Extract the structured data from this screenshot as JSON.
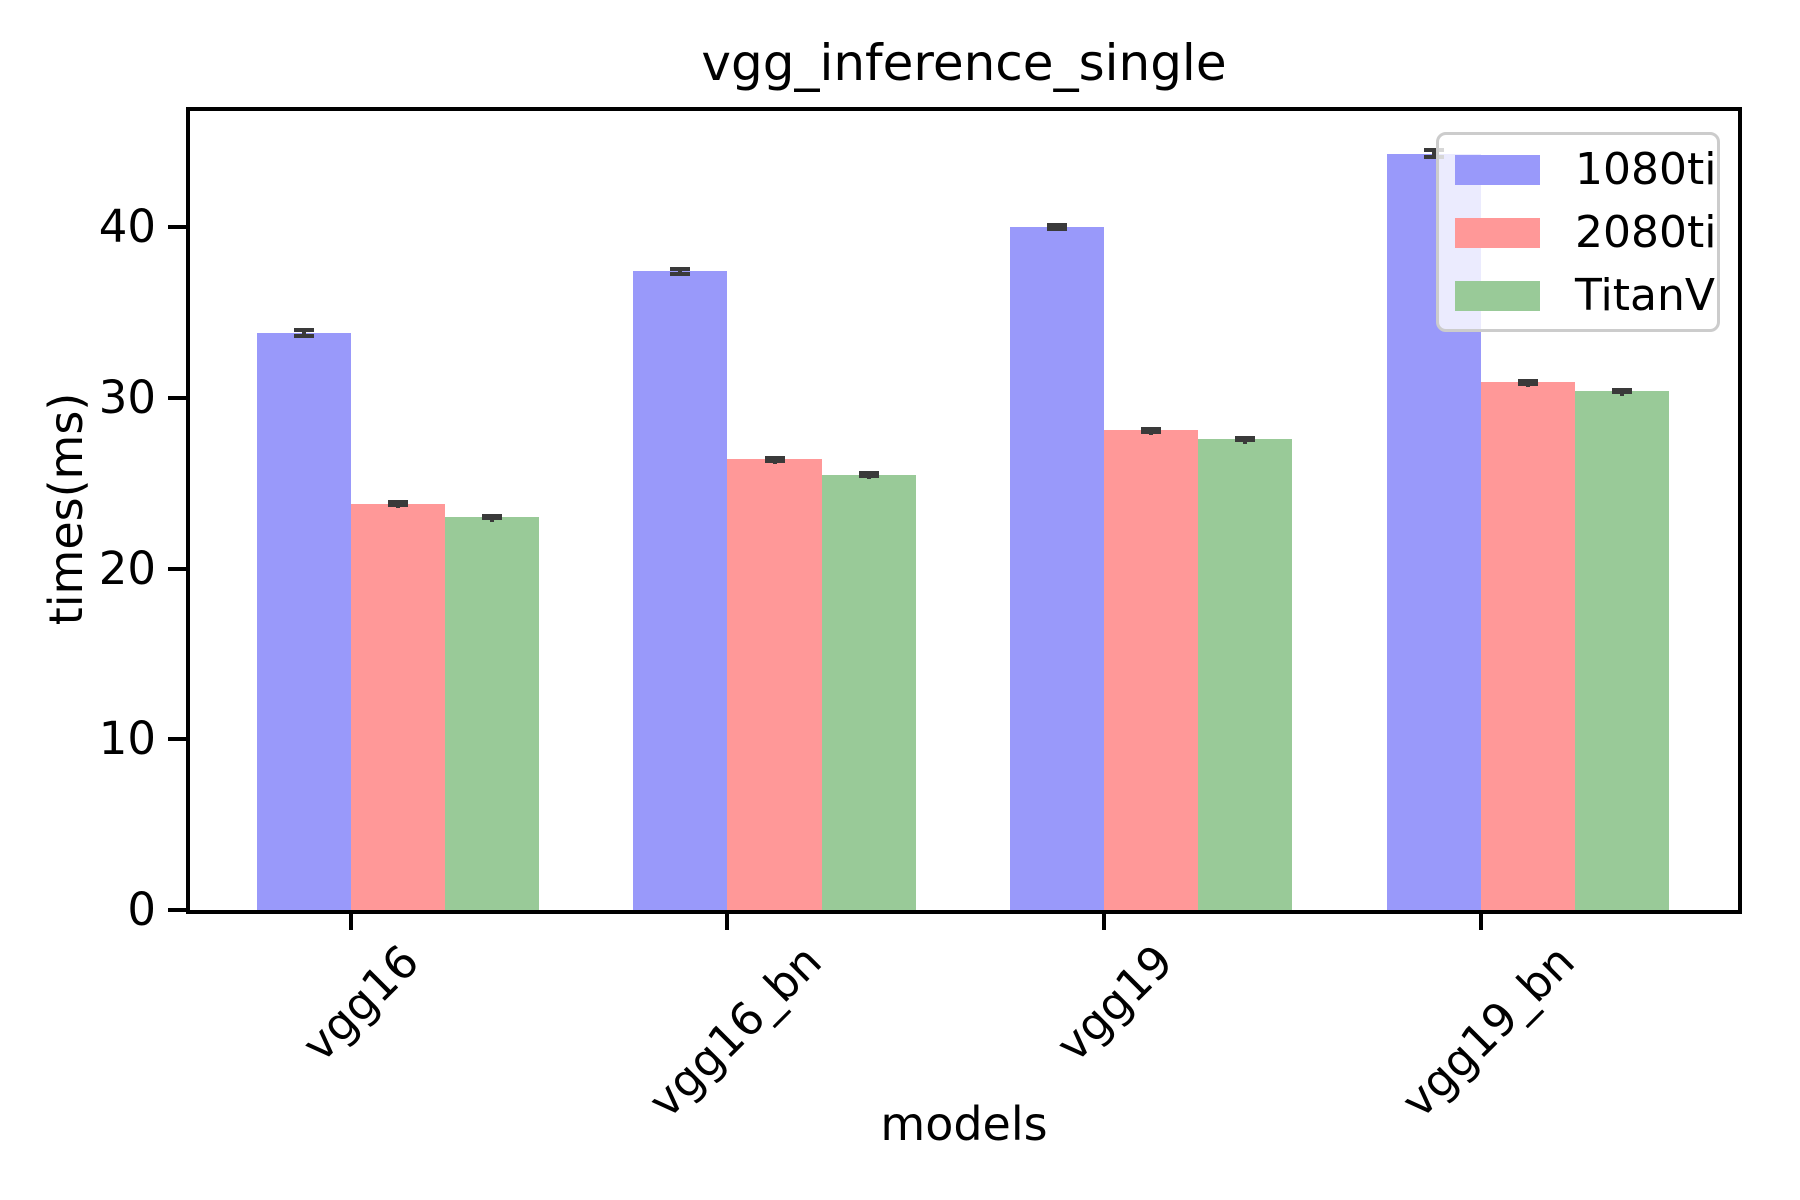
{
  "figure": {
    "title": "vgg_inference_single"
  },
  "chart_data": {
    "type": "bar",
    "title": "vgg_inference_single",
    "xlabel": "models",
    "ylabel": "times(ms)",
    "categories": [
      "vgg16",
      "vgg16_bn",
      "vgg19",
      "vgg19_bn"
    ],
    "series": [
      {
        "name": "1080ti",
        "color": "#9999fa",
        "values": [
          33.8,
          37.4,
          40.0,
          44.3
        ],
        "yerr": [
          0.2,
          0.15,
          0.12,
          0.2
        ]
      },
      {
        "name": "2080ti",
        "color": "#ff9898",
        "values": [
          23.8,
          26.4,
          28.1,
          30.9
        ],
        "yerr": [
          0.1,
          0.1,
          0.1,
          0.1
        ]
      },
      {
        "name": "TitanV",
        "color": "#99ca98",
        "values": [
          23.0,
          25.5,
          27.6,
          30.4
        ],
        "yerr": [
          0.06,
          0.08,
          0.06,
          0.06
        ]
      }
    ],
    "yticks": [
      0,
      10,
      20,
      30,
      40
    ],
    "ytick_labels": [
      "0",
      "10",
      "20",
      "30",
      "40"
    ],
    "ylim": [
      0,
      46.8
    ],
    "xlim": [
      -0.432,
      3.688
    ],
    "bar_width": 0.25,
    "grid": false,
    "legend_position": "upper right",
    "error_color": "#3a3a3a",
    "legend_labels": [
      "1080ti",
      "2080ti",
      "TitanV"
    ]
  }
}
